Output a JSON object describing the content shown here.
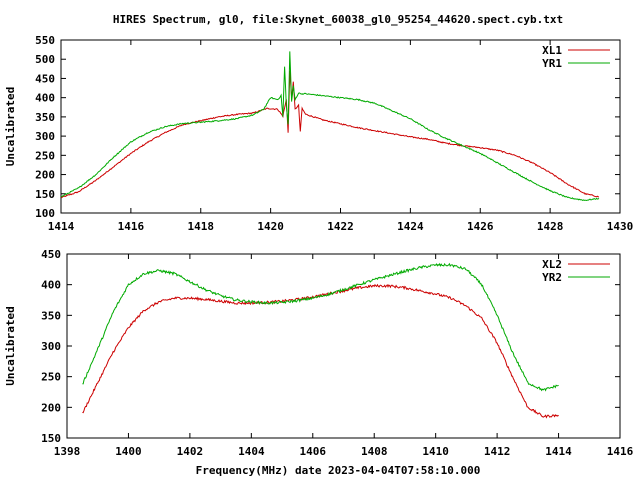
{
  "title": "HIRES Spectrum, gl0, file:Skynet_60038_gl0_95254_44620.spect.cyb.txt",
  "xlabel": "Frequency(MHz) date 2023-04-04T07:58:10.000",
  "colors": {
    "red": "#cc0000",
    "green": "#00aa00",
    "axis": "#000000"
  },
  "chart_data": [
    {
      "type": "line",
      "title": "HIRES Spectrum, gl0, file:Skynet_60038_gl0_95254_44620.spect.cyb.txt",
      "xlabel": "",
      "ylabel": "Uncalibrated",
      "xlim": [
        1414,
        1430
      ],
      "ylim": [
        100,
        550
      ],
      "xticks": [
        1414,
        1416,
        1418,
        1420,
        1422,
        1424,
        1426,
        1428,
        1430
      ],
      "yticks": [
        100,
        150,
        200,
        250,
        300,
        350,
        400,
        450,
        500,
        550
      ],
      "grid": false,
      "legend": "top-right",
      "series": [
        {
          "name": "XL1",
          "color": "#cc0000",
          "x": [
            1414.0,
            1414.5,
            1415.0,
            1415.5,
            1416.0,
            1416.5,
            1417.0,
            1417.5,
            1418.0,
            1418.5,
            1419.0,
            1419.5,
            1419.9,
            1420.2,
            1420.35,
            1420.45,
            1420.5,
            1420.55,
            1420.6,
            1420.65,
            1420.7,
            1420.8,
            1420.85,
            1420.9,
            1421.0,
            1421.5,
            1422.0,
            1422.5,
            1423.0,
            1423.5,
            1424.0,
            1424.5,
            1425.0,
            1425.5,
            1426.0,
            1426.5,
            1427.0,
            1427.5,
            1428.0,
            1428.5,
            1429.0,
            1429.4
          ],
          "y": [
            140,
            155,
            185,
            220,
            255,
            285,
            310,
            330,
            340,
            350,
            356,
            360,
            372,
            370,
            352,
            395,
            310,
            470,
            400,
            440,
            370,
            380,
            312,
            372,
            357,
            342,
            332,
            322,
            314,
            306,
            298,
            292,
            282,
            275,
            270,
            263,
            250,
            230,
            205,
            175,
            150,
            142
          ]
        },
        {
          "name": "YR1",
          "color": "#00aa00",
          "x": [
            1414.0,
            1414.5,
            1415.0,
            1415.5,
            1416.0,
            1416.5,
            1417.0,
            1417.5,
            1418.0,
            1418.5,
            1419.0,
            1419.5,
            1419.8,
            1420.0,
            1420.2,
            1420.3,
            1420.35,
            1420.4,
            1420.45,
            1420.5,
            1420.55,
            1420.6,
            1420.65,
            1420.7,
            1420.8,
            1420.9,
            1421.0,
            1421.5,
            1422.0,
            1422.5,
            1423.0,
            1423.5,
            1424.0,
            1424.5,
            1425.0,
            1425.5,
            1426.0,
            1426.5,
            1427.0,
            1427.5,
            1428.0,
            1428.5,
            1429.0,
            1429.4
          ],
          "y": [
            142,
            165,
            200,
            245,
            285,
            310,
            325,
            333,
            336,
            340,
            345,
            355,
            370,
            400,
            395,
            405,
            350,
            480,
            380,
            330,
            520,
            390,
            430,
            395,
            412,
            410,
            410,
            405,
            400,
            395,
            385,
            365,
            345,
            318,
            295,
            275,
            255,
            230,
            205,
            180,
            158,
            140,
            133,
            138
          ]
        }
      ]
    },
    {
      "type": "line",
      "title": "",
      "xlabel": "Frequency(MHz) date 2023-04-04T07:58:10.000",
      "ylabel": "Uncalibrated",
      "xlim": [
        1398,
        1416
      ],
      "ylim": [
        150,
        450
      ],
      "xticks": [
        1398,
        1400,
        1402,
        1404,
        1406,
        1408,
        1410,
        1412,
        1414,
        1416
      ],
      "yticks": [
        150,
        200,
        250,
        300,
        350,
        400,
        450
      ],
      "grid": false,
      "legend": "top-right",
      "series": [
        {
          "name": "XL2",
          "color": "#cc0000",
          "x": [
            1398.5,
            1399.0,
            1399.5,
            1400.0,
            1400.5,
            1401.0,
            1401.5,
            1402.0,
            1402.5,
            1403.0,
            1403.5,
            1404.0,
            1404.5,
            1405.0,
            1405.5,
            1406.0,
            1406.5,
            1407.0,
            1407.5,
            1408.0,
            1408.5,
            1409.0,
            1409.5,
            1410.0,
            1410.5,
            1411.0,
            1411.5,
            1412.0,
            1412.5,
            1413.0,
            1413.5,
            1414.0
          ],
          "y": [
            190,
            240,
            290,
            330,
            358,
            372,
            378,
            378,
            376,
            373,
            370,
            370,
            371,
            373,
            376,
            380,
            385,
            390,
            395,
            398,
            398,
            395,
            390,
            385,
            378,
            365,
            345,
            305,
            250,
            200,
            185,
            187
          ]
        },
        {
          "name": "YR2",
          "color": "#00aa00",
          "x": [
            1398.5,
            1399.0,
            1399.5,
            1400.0,
            1400.5,
            1401.0,
            1401.5,
            1402.0,
            1402.5,
            1403.0,
            1403.5,
            1404.0,
            1404.5,
            1405.0,
            1405.5,
            1406.0,
            1406.5,
            1407.0,
            1407.5,
            1408.0,
            1408.5,
            1409.0,
            1409.5,
            1410.0,
            1410.5,
            1411.0,
            1411.5,
            1412.0,
            1412.5,
            1413.0,
            1413.5,
            1414.0
          ],
          "y": [
            237,
            295,
            355,
            400,
            418,
            423,
            418,
            405,
            392,
            382,
            375,
            372,
            370,
            371,
            374,
            378,
            384,
            392,
            400,
            408,
            415,
            422,
            428,
            432,
            432,
            425,
            400,
            350,
            290,
            240,
            228,
            236
          ]
        }
      ]
    }
  ]
}
